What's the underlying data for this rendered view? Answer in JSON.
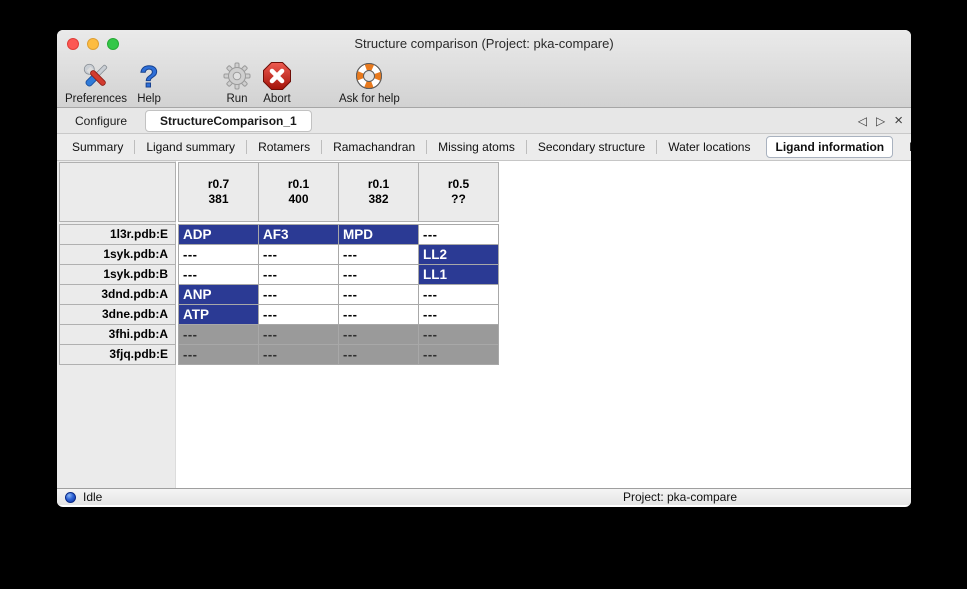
{
  "window": {
    "title": "Structure comparison (Project: pka-compare)"
  },
  "toolbar": {
    "items": [
      {
        "id": "preferences",
        "label": "Preferences",
        "icon": "tools-icon"
      },
      {
        "id": "help",
        "label": "Help",
        "icon": "question-mark-icon"
      },
      {
        "id": "run",
        "label": "Run",
        "icon": "gear-icon"
      },
      {
        "id": "abort",
        "label": "Abort",
        "icon": "stop-x-icon"
      },
      {
        "id": "ask-for-help",
        "label": "Ask for help",
        "icon": "lifebuoy-icon"
      }
    ]
  },
  "tab_bar": {
    "tabs": [
      {
        "label": "Configure",
        "selected": false
      },
      {
        "label": "StructureComparison_1",
        "selected": true
      }
    ],
    "left_arrow": "◁",
    "right_arrow": "▷",
    "close": "×"
  },
  "subtab_bar": {
    "tabs": [
      {
        "label": "Summary",
        "selected": false
      },
      {
        "label": "Ligand summary",
        "selected": false
      },
      {
        "label": "Rotamers",
        "selected": false
      },
      {
        "label": "Ramachandran",
        "selected": false
      },
      {
        "label": "Missing atoms",
        "selected": false
      },
      {
        "label": "Secondary structure",
        "selected": false
      },
      {
        "label": "Water locations",
        "selected": false
      },
      {
        "label": "Ligand information",
        "selected": true
      },
      {
        "label": "B-factors",
        "selected": false
      }
    ],
    "left_arrow": "◁",
    "right_arrow": "▷"
  },
  "ligand_table": {
    "column_headers": [
      {
        "line1": "r0.7",
        "line2": "381"
      },
      {
        "line1": "r0.1",
        "line2": "400"
      },
      {
        "line1": "r0.1",
        "line2": "382"
      },
      {
        "line1": "r0.5",
        "line2": "??"
      }
    ],
    "rows": [
      {
        "name": "1l3r.pdb:E",
        "disabled": false,
        "cells": [
          {
            "text": "ADP",
            "highlighted": true
          },
          {
            "text": "AF3",
            "highlighted": true
          },
          {
            "text": "MPD",
            "highlighted": true
          },
          {
            "text": "---",
            "highlighted": false
          }
        ]
      },
      {
        "name": "1syk.pdb:A",
        "disabled": false,
        "cells": [
          {
            "text": "---",
            "highlighted": false
          },
          {
            "text": "---",
            "highlighted": false
          },
          {
            "text": "---",
            "highlighted": false
          },
          {
            "text": "LL2",
            "highlighted": true
          }
        ]
      },
      {
        "name": "1syk.pdb:B",
        "disabled": false,
        "cells": [
          {
            "text": "---",
            "highlighted": false
          },
          {
            "text": "---",
            "highlighted": false
          },
          {
            "text": "---",
            "highlighted": false
          },
          {
            "text": "LL1",
            "highlighted": true
          }
        ]
      },
      {
        "name": "3dnd.pdb:A",
        "disabled": false,
        "cells": [
          {
            "text": "ANP",
            "highlighted": true
          },
          {
            "text": "---",
            "highlighted": false
          },
          {
            "text": "---",
            "highlighted": false
          },
          {
            "text": "---",
            "highlighted": false
          }
        ]
      },
      {
        "name": "3dne.pdb:A",
        "disabled": false,
        "cells": [
          {
            "text": "ATP",
            "highlighted": true
          },
          {
            "text": "---",
            "highlighted": false
          },
          {
            "text": "---",
            "highlighted": false
          },
          {
            "text": "---",
            "highlighted": false
          }
        ]
      },
      {
        "name": "3fhi.pdb:A",
        "disabled": true,
        "cells": [
          {
            "text": "---",
            "highlighted": false
          },
          {
            "text": "---",
            "highlighted": false
          },
          {
            "text": "---",
            "highlighted": false
          },
          {
            "text": "---",
            "highlighted": false
          }
        ]
      },
      {
        "name": "3fjq.pdb:E",
        "disabled": true,
        "cells": [
          {
            "text": "---",
            "highlighted": false
          },
          {
            "text": "---",
            "highlighted": false
          },
          {
            "text": "---",
            "highlighted": false
          },
          {
            "text": "---",
            "highlighted": false
          }
        ]
      }
    ]
  },
  "status_bar": {
    "status": "Idle",
    "project": "Project: pka-compare"
  },
  "colors": {
    "highlight_blue": "#2b3a94",
    "disabled_gray": "#9a9a9a",
    "chrome_gray": "#ececec"
  }
}
